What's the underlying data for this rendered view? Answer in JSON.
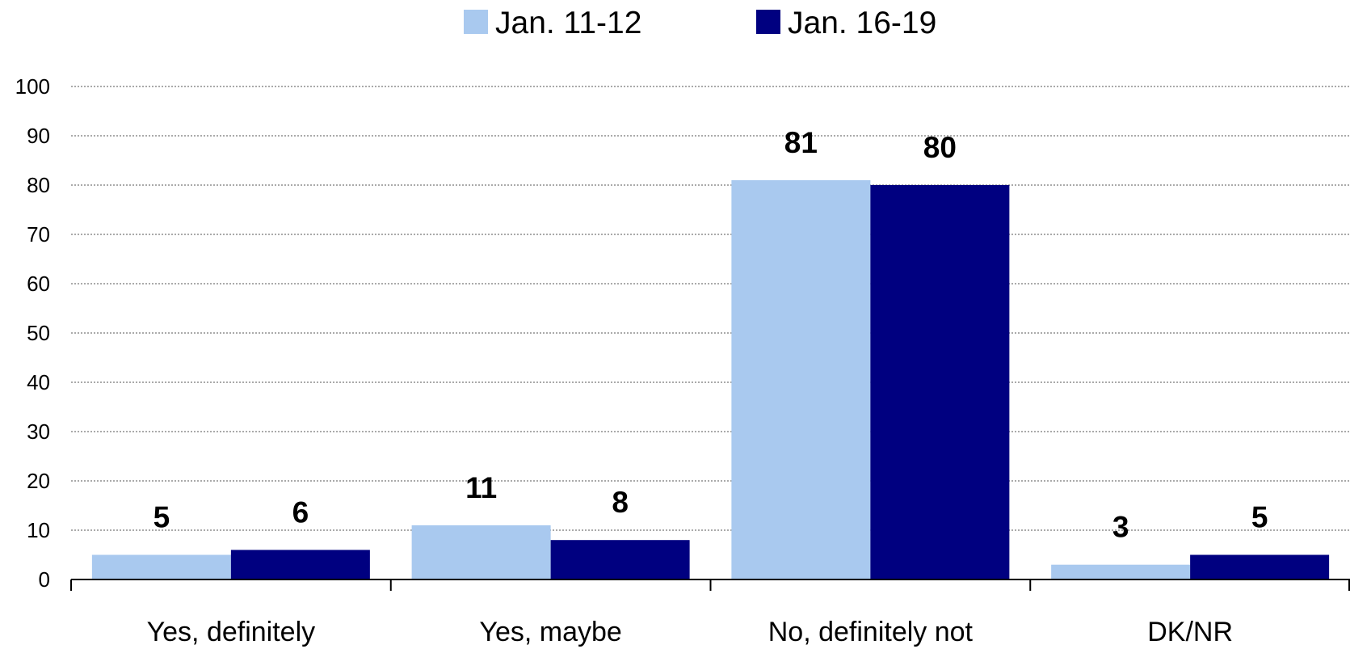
{
  "chart_data": {
    "type": "bar",
    "categories": [
      "Yes, definitely",
      "Yes, maybe",
      "No, definitely not",
      "DK/NR"
    ],
    "series": [
      {
        "name": "Jan. 11-12",
        "color": "#a9c9ef",
        "values": [
          5,
          11,
          81,
          3
        ]
      },
      {
        "name": "Jan. 16-19",
        "color": "#000080",
        "values": [
          6,
          8,
          80,
          5
        ]
      }
    ],
    "yticks": [
      "0",
      "10",
      "20",
      "30",
      "40",
      "50",
      "60",
      "70",
      "80",
      "90",
      "100"
    ],
    "ylim": [
      0,
      100
    ],
    "grid": true,
    "legend_position": "top-center"
  }
}
